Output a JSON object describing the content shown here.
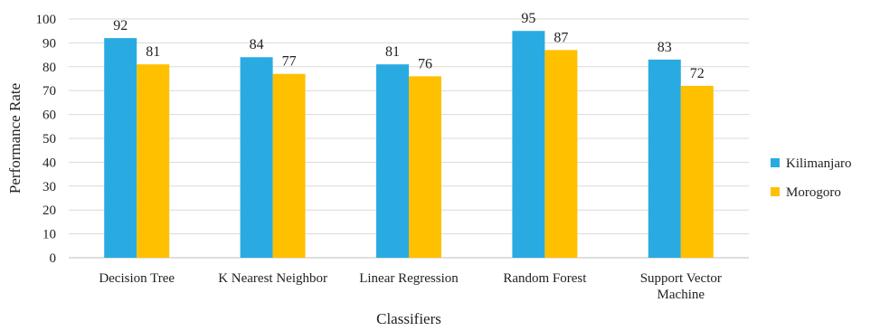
{
  "chart_data": {
    "type": "bar",
    "categories": [
      [
        "Decision Tree"
      ],
      [
        "K Nearest Neighbor"
      ],
      [
        "Linear Regression"
      ],
      [
        "Random Forest"
      ],
      [
        "Support Vector",
        "Machine"
      ]
    ],
    "series": [
      {
        "name": "Kilimanjaro",
        "color": "#29ABE2",
        "values": [
          92,
          84,
          81,
          95,
          83
        ]
      },
      {
        "name": "Morogoro",
        "color": "#FFC000",
        "values": [
          81,
          77,
          76,
          87,
          72
        ]
      }
    ],
    "xlabel": "Classifiers",
    "ylabel": "Performance Rate",
    "ylim": [
      0,
      100
    ],
    "ytick_step": 10,
    "grid": true,
    "legend_position": "right",
    "data_labels": true
  }
}
